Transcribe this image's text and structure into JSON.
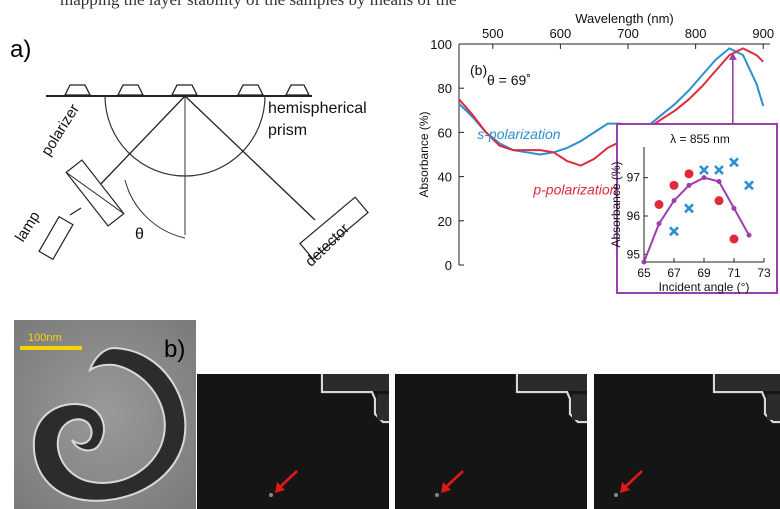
{
  "caption_fragment": "mapping the layer stability of the samples by means of the",
  "panel_a": {
    "label": "a)",
    "hemispherical_label_1": "hemispherical",
    "hemispherical_label_2": "prism",
    "polarizer_label": "polarizer",
    "lamp_label": "lamp",
    "detector_label": "detector",
    "theta_label": "θ"
  },
  "panel_b_chart": {
    "panel_tag": "(b)",
    "theta_annotation": "θ = 69˚",
    "inset_label": "λ = 855 nm"
  },
  "panel_b_images": {
    "label": "b)",
    "scale_bar": "100nm"
  },
  "chart_data": [
    {
      "type": "line",
      "title": "",
      "xlabel": "Wavelength (nm)",
      "ylabel": "Absorbance (%)",
      "xlim": [
        450,
        910
      ],
      "ylim": [
        0,
        100
      ],
      "x_ticks": [
        "500",
        "600",
        "700",
        "800",
        "900"
      ],
      "y_ticks": [
        "0",
        "20",
        "40",
        "60",
        "80",
        "100"
      ],
      "legend_placement": "annotations on curves",
      "series": [
        {
          "name": "s-polarization",
          "color": "#2b8fd0",
          "x": [
            450,
            470,
            490,
            510,
            530,
            550,
            570,
            590,
            610,
            630,
            650,
            670,
            690,
            710,
            730,
            750,
            770,
            790,
            810,
            830,
            850,
            870,
            890,
            900
          ],
          "y": [
            73,
            67,
            60,
            55,
            52,
            51,
            50,
            51,
            53,
            56,
            60,
            64,
            64,
            61,
            63,
            68,
            73,
            79,
            86,
            93,
            98,
            95,
            82,
            72
          ]
        },
        {
          "name": "p-polarization",
          "color": "#e02a3a",
          "x": [
            450,
            470,
            490,
            510,
            530,
            550,
            570,
            590,
            610,
            630,
            650,
            670,
            690,
            710,
            730,
            750,
            770,
            790,
            810,
            830,
            850,
            870,
            890,
            900
          ],
          "y": [
            75,
            68,
            60,
            54,
            52,
            52,
            52,
            51,
            47,
            45,
            48,
            53,
            56,
            58,
            62,
            66,
            70,
            75,
            81,
            88,
            95,
            98,
            95,
            92
          ]
        }
      ],
      "annotation_arrow_wavelength": 855
    },
    {
      "type": "scatter",
      "title": "λ = 855 nm",
      "xlabel": "Incident angle (°)",
      "ylabel": "Absorbance (%)",
      "xlim": [
        65,
        73
      ],
      "ylim": [
        94.8,
        97.8
      ],
      "x_ticks": [
        "65",
        "67",
        "69",
        "71",
        "73"
      ],
      "y_ticks": [
        "95",
        "96",
        "97"
      ],
      "series": [
        {
          "name": "p-polarization",
          "marker": "circle",
          "color": "#e02a3a",
          "x": [
            66,
            67,
            68,
            70,
            71
          ],
          "y": [
            96.3,
            96.8,
            97.1,
            96.4,
            95.4
          ]
        },
        {
          "name": "s-polarization",
          "marker": "x",
          "color": "#2b8fd0",
          "x": [
            67,
            68,
            69,
            70,
            71,
            72
          ],
          "y": [
            95.6,
            96.2,
            97.2,
            97.2,
            97.4,
            96.8
          ]
        },
        {
          "name": "fit",
          "marker": "line+dot",
          "color": "#9b3fae",
          "x": [
            65,
            66,
            67,
            68,
            69,
            70,
            71,
            72
          ],
          "y": [
            94.8,
            95.8,
            96.4,
            96.8,
            97.0,
            96.9,
            96.2,
            95.5
          ]
        }
      ]
    }
  ]
}
